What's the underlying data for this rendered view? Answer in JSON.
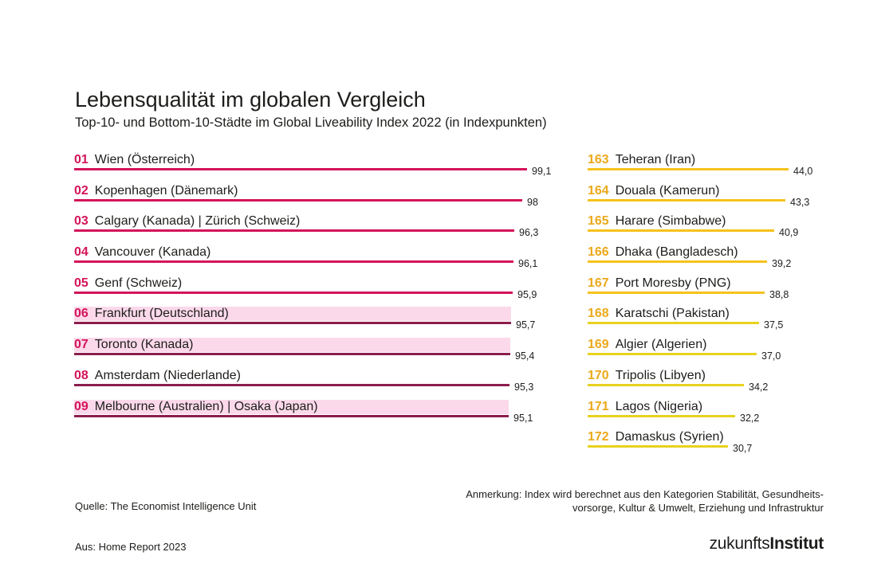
{
  "chart_data": {
    "type": "bar",
    "orientation": "horizontal",
    "title": "Lebensqualität im globalen Vergleich",
    "subtitle": "Top-10- und Bottom-10-Städte im Global Liveability Index 2022 (in Indexpunkten)",
    "series": [
      {
        "name": "",
        "ranks": [
          "01",
          "02",
          "03",
          "04",
          "05",
          "06",
          "07",
          "08",
          "09"
        ],
        "categories": [
          "Wien (Österreich)",
          "Kopenhagen (Dänemark)",
          "Calgary (Kanada) | Zürich (Schweiz)",
          "Vancouver (Kanada)",
          "Genf (Schweiz)",
          "Frankfurt (Deutschland)",
          "Toronto (Kanada)",
          "Amsterdam (Niederlande)",
          "Melbourne (Australien) | Osaka (Japan)"
        ],
        "values": [
          99.1,
          98,
          96.3,
          96.1,
          95.9,
          95.7,
          95.4,
          95.3,
          95.1
        ],
        "value_labels": [
          "99,1",
          "98",
          "96,3",
          "96,1",
          "95,9",
          "95,7",
          "95,4",
          "95,3",
          "95,1"
        ],
        "bar_colors": [
          "#d4145a",
          "#d4145a",
          "#d4145a",
          "#d4145a",
          "#d4145a",
          "#8c1d4e",
          "#8c1d4e",
          "#8c1d4e",
          "#8c1d4e"
        ],
        "rank_color": "#d4145a",
        "highlight_color": "#fbd9ea",
        "highlighted": [
          5,
          6,
          8
        ]
      },
      {
        "name": "",
        "ranks": [
          "163",
          "164",
          "165",
          "166",
          "167",
          "168",
          "169",
          "170",
          "171",
          "172"
        ],
        "categories": [
          "Teheran (Iran)",
          "Douala (Kamerun)",
          "Harare (Simbabwe)",
          "Dhaka (Bangladesch)",
          "Port Moresby (PNG)",
          "Karatschi (Pakistan)",
          "Algier (Algerien)",
          "Tripolis (Libyen)",
          "Lagos (Nigeria)",
          "Damaskus (Syrien)"
        ],
        "values": [
          44.0,
          43.3,
          40.9,
          39.2,
          38.8,
          37.5,
          37.0,
          34.2,
          32.2,
          30.7
        ],
        "value_labels": [
          "44,0",
          "43,3",
          "40,9",
          "39,2",
          "38,8",
          "37,5",
          "37,0",
          "34,2",
          "32,2",
          "30,7"
        ],
        "bar_colors": [
          "#f5c21b",
          "#f5c21b",
          "#f5c21b",
          "#f5c21b",
          "#f5c21b",
          "#e8d21e",
          "#e8d21e",
          "#e8d21e",
          "#e8d21e",
          "#e8d21e"
        ],
        "rank_color": "#eba91c"
      }
    ]
  },
  "footer": {
    "source": "Quelle: The Economist Intelligence Unit",
    "note_line1": "Anmerkung: Index wird berechnet aus den Kategorien Stabilität, Gesundheits-",
    "note_line2": "vorsorge, Kultur & Umwelt, Erziehung und Infrastruktur",
    "from": "Aus: Home Report 2023",
    "logo_light": "zukunfts",
    "logo_bold": "Institut"
  }
}
